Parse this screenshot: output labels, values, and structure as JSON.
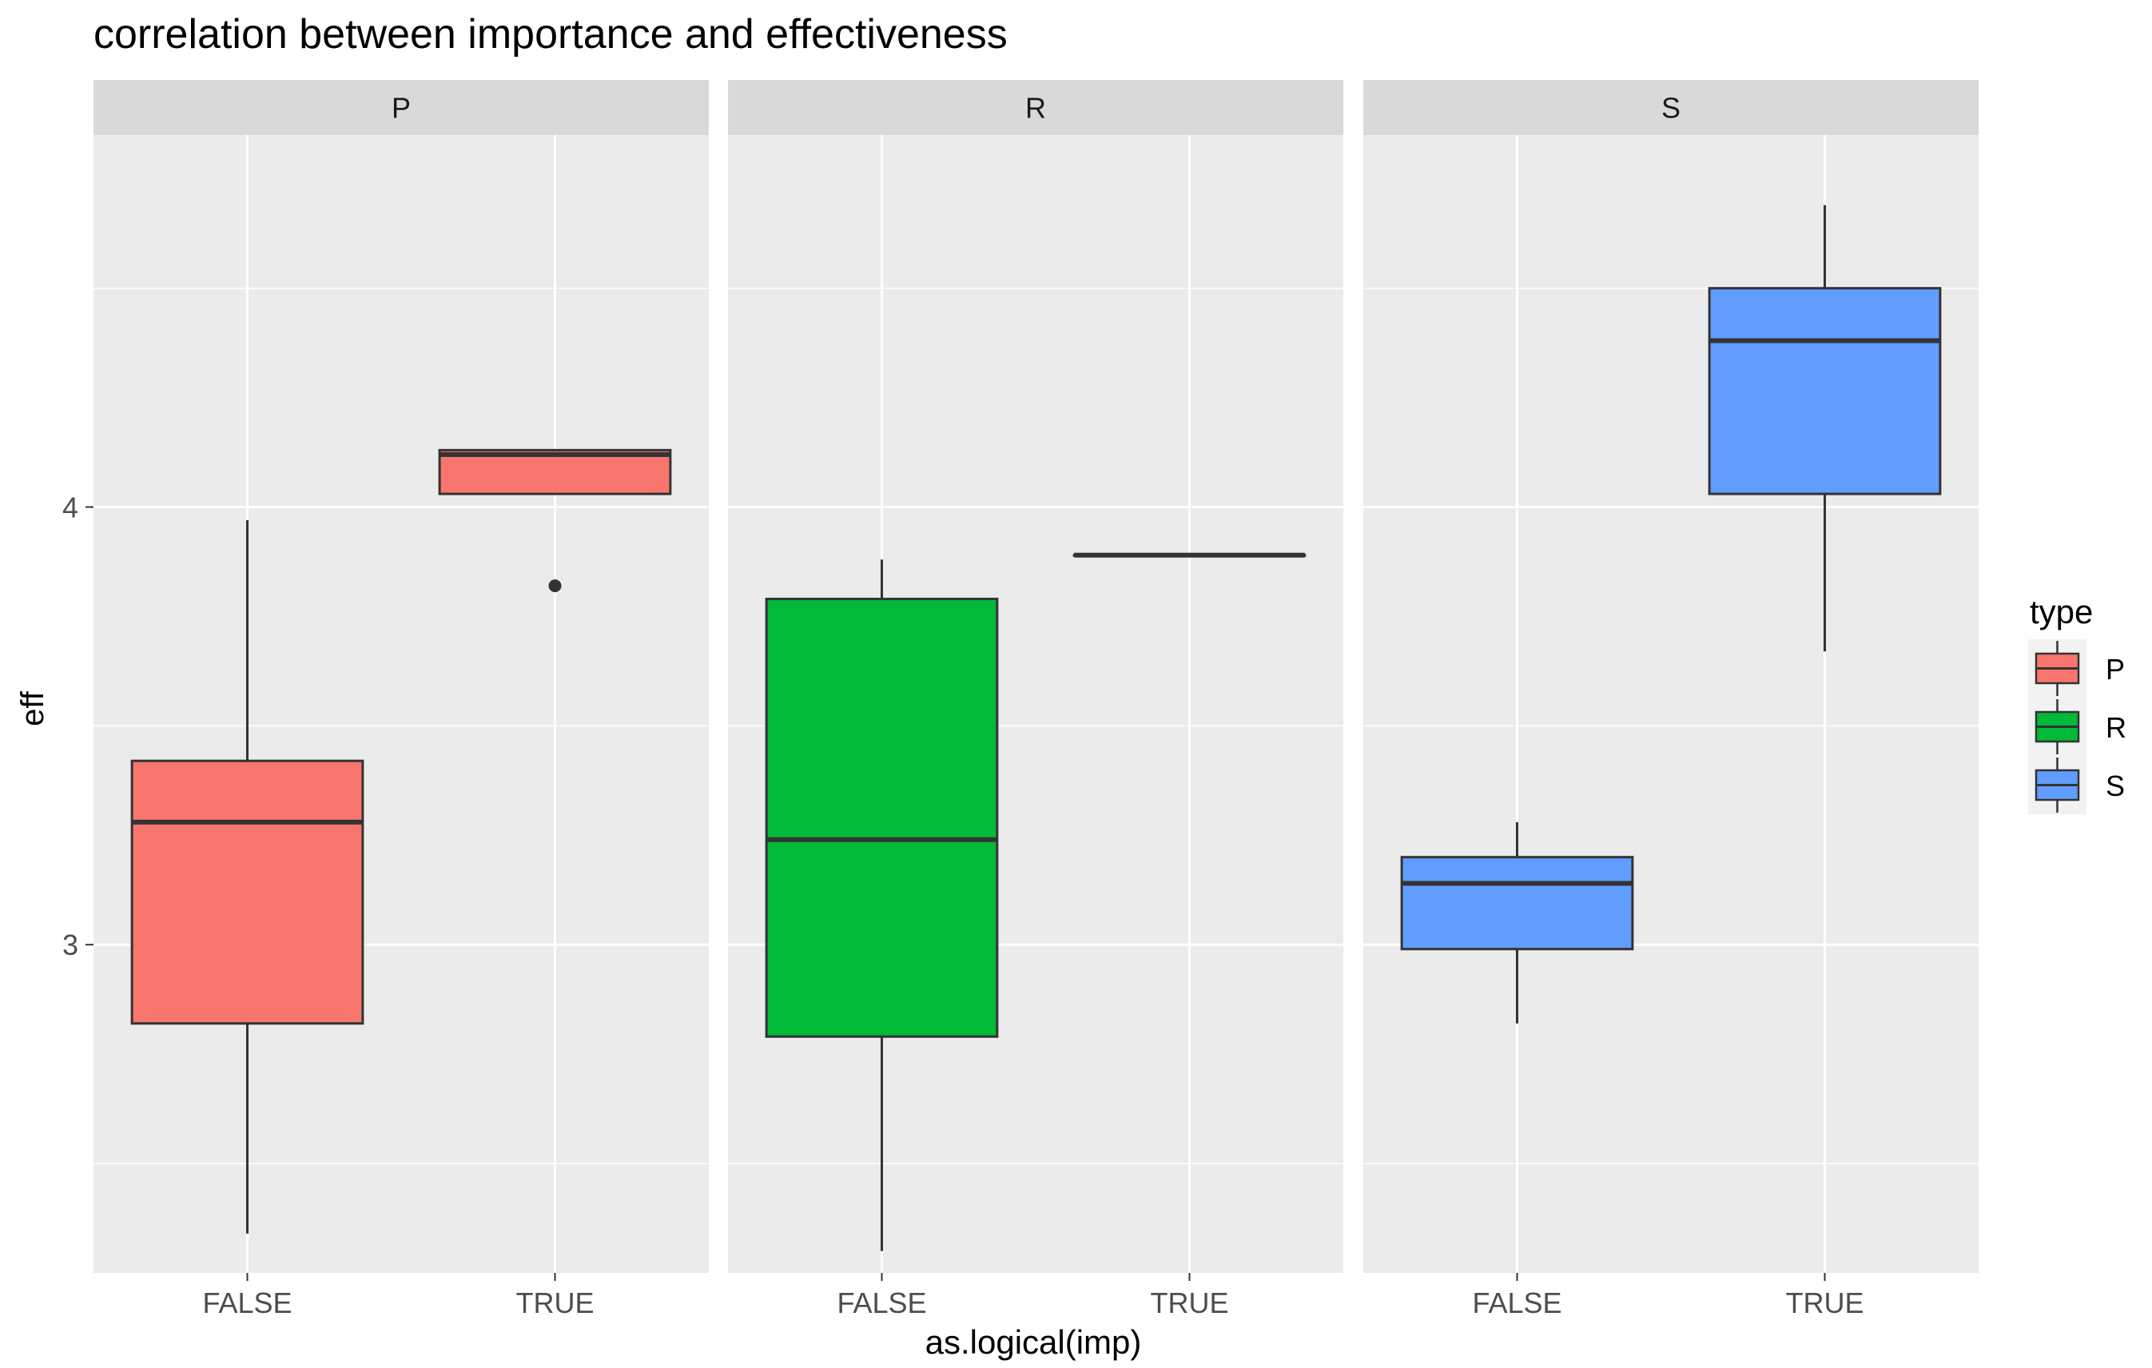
{
  "chart_data": {
    "type": "boxplot",
    "title": "correlation between importance and effectiveness",
    "xlabel": "as.logical(imp)",
    "ylabel": "eff",
    "ylim": [
      2.25,
      4.85
    ],
    "y_ticks": [
      3,
      4
    ],
    "y_minor_ticks": [
      2.5,
      3.5,
      4.5
    ],
    "categories": [
      "FALSE",
      "TRUE"
    ],
    "facets": [
      {
        "label": "P",
        "fill": "#F8766D",
        "boxes": [
          {
            "x": "FALSE",
            "lower_whisker": 2.34,
            "q1": 2.82,
            "median": 3.28,
            "q3": 3.42,
            "upper_whisker": 3.97,
            "outliers": []
          },
          {
            "x": "TRUE",
            "lower_whisker": 4.03,
            "q1": 4.03,
            "median": 4.12,
            "q3": 4.13,
            "upper_whisker": 4.13,
            "outliers": [
              3.82
            ]
          }
        ]
      },
      {
        "label": "R",
        "fill": "#00BA38",
        "boxes": [
          {
            "x": "FALSE",
            "lower_whisker": 2.3,
            "q1": 2.79,
            "median": 3.24,
            "q3": 3.79,
            "upper_whisker": 3.88,
            "outliers": []
          },
          {
            "x": "TRUE",
            "lower_whisker": 3.89,
            "q1": 3.89,
            "median": 3.89,
            "q3": 3.89,
            "upper_whisker": 3.89,
            "outliers": []
          }
        ]
      },
      {
        "label": "S",
        "fill": "#619CFF",
        "boxes": [
          {
            "x": "FALSE",
            "lower_whisker": 2.82,
            "q1": 2.99,
            "median": 3.14,
            "q3": 3.2,
            "upper_whisker": 3.28,
            "outliers": []
          },
          {
            "x": "TRUE",
            "lower_whisker": 3.67,
            "q1": 4.03,
            "median": 4.38,
            "q3": 4.5,
            "upper_whisker": 4.69,
            "outliers": []
          }
        ]
      }
    ],
    "legend": {
      "title": "type",
      "placement": "right",
      "items": [
        {
          "label": "P",
          "fill": "#F8766D"
        },
        {
          "label": "R",
          "fill": "#00BA38"
        },
        {
          "label": "S",
          "fill": "#619CFF"
        }
      ]
    },
    "grid": true
  }
}
